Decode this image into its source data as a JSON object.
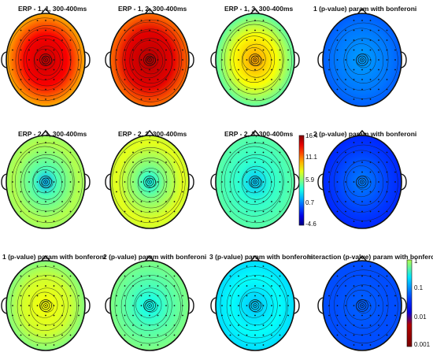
{
  "figure": {
    "titles": [
      "ERP - 1, 1, 300-400ms",
      "ERP - 1, 2, 300-400ms",
      "ERP - 1, 3, 300-400ms",
      "1 (p-value) param with bonferoni",
      "ERP - 2, 1, 300-400ms",
      "ERP - 2, 2, 300-400ms",
      "ERP - 2, 3, 300-400ms",
      "2 (p-value) param with bonferoni",
      "1 (p-value) param with bonferoni",
      "2 (p-value) param with bonferoni",
      "3 (p-value) param with bonferoni",
      "Interaction (p-value) param with bonferoni"
    ],
    "erp_colorbar": {
      "ticks": [
        "16.4",
        "11.1",
        "5.9",
        "0.7",
        "-4.6"
      ],
      "range": [
        -4.6,
        16.4
      ]
    },
    "pvalue_colorbar": {
      "ticks": [
        "1",
        "0.1",
        "0.01",
        "0.001"
      ],
      "scale": "log",
      "range": [
        0.001,
        1
      ]
    }
  }
}
